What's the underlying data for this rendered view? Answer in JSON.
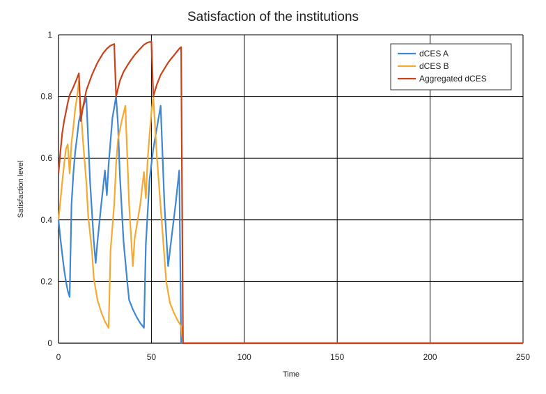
{
  "chart_data": {
    "type": "line",
    "title": "Satisfaction of the institutions",
    "xlabel": "Time",
    "ylabel": "Satisfaction level",
    "xlim": [
      0,
      250
    ],
    "ylim": [
      0,
      1
    ],
    "x_ticks": [
      "0",
      "50",
      "100",
      "150",
      "200",
      "250"
    ],
    "y_ticks": [
      "0",
      "0.2",
      "0.4",
      "0.6",
      "0.8",
      "1"
    ],
    "grid": true,
    "legend_position": "top-right",
    "series": [
      {
        "name": "dCES A",
        "color": "#3f86d3",
        "points": [
          [
            0,
            0.4
          ],
          [
            1,
            0.34
          ],
          [
            2,
            0.29
          ],
          [
            3,
            0.24
          ],
          [
            4,
            0.2
          ],
          [
            5,
            0.17
          ],
          [
            6,
            0.15
          ],
          [
            7,
            0.45
          ],
          [
            8,
            0.55
          ],
          [
            9,
            0.62
          ],
          [
            10,
            0.67
          ],
          [
            11,
            0.72
          ],
          [
            12,
            0.745
          ],
          [
            13,
            0.76
          ],
          [
            14,
            0.78
          ],
          [
            15,
            0.795
          ],
          [
            17,
            0.52
          ],
          [
            19,
            0.33
          ],
          [
            20,
            0.26
          ],
          [
            21,
            0.33
          ],
          [
            23,
            0.45
          ],
          [
            25,
            0.56
          ],
          [
            26,
            0.48
          ],
          [
            27,
            0.58
          ],
          [
            29,
            0.73
          ],
          [
            31,
            0.8
          ],
          [
            32,
            0.71
          ],
          [
            33,
            0.55
          ],
          [
            35,
            0.33
          ],
          [
            37,
            0.2
          ],
          [
            38,
            0.14
          ],
          [
            40,
            0.11
          ],
          [
            42,
            0.085
          ],
          [
            44,
            0.065
          ],
          [
            46,
            0.05
          ],
          [
            47,
            0.32
          ],
          [
            49,
            0.53
          ],
          [
            51,
            0.63
          ],
          [
            53,
            0.7
          ],
          [
            55,
            0.77
          ],
          [
            57,
            0.45
          ],
          [
            59,
            0.25
          ],
          [
            61,
            0.35
          ],
          [
            63,
            0.45
          ],
          [
            65,
            0.56
          ],
          [
            66,
            0.0
          ],
          [
            250,
            0.0
          ]
        ]
      },
      {
        "name": "dCES B",
        "color": "#f5a931",
        "points": [
          [
            0,
            0.4
          ],
          [
            1,
            0.46
          ],
          [
            2,
            0.52
          ],
          [
            3,
            0.58
          ],
          [
            4,
            0.63
          ],
          [
            5,
            0.645
          ],
          [
            6,
            0.55
          ],
          [
            7,
            0.65
          ],
          [
            8,
            0.7
          ],
          [
            9,
            0.76
          ],
          [
            10,
            0.8
          ],
          [
            11,
            0.85
          ],
          [
            13,
            0.67
          ],
          [
            15,
            0.52
          ],
          [
            16,
            0.41
          ],
          [
            18,
            0.3
          ],
          [
            19,
            0.21
          ],
          [
            21,
            0.14
          ],
          [
            23,
            0.1
          ],
          [
            25,
            0.07
          ],
          [
            27,
            0.05
          ],
          [
            28,
            0.3
          ],
          [
            30,
            0.45
          ],
          [
            31,
            0.58
          ],
          [
            32,
            0.66
          ],
          [
            34,
            0.72
          ],
          [
            36,
            0.77
          ],
          [
            38,
            0.45
          ],
          [
            40,
            0.25
          ],
          [
            41,
            0.34
          ],
          [
            44,
            0.45
          ],
          [
            46,
            0.555
          ],
          [
            47,
            0.47
          ],
          [
            48,
            0.6
          ],
          [
            50,
            0.75
          ],
          [
            51,
            0.8
          ],
          [
            52,
            0.7
          ],
          [
            53,
            0.6
          ],
          [
            56,
            0.36
          ],
          [
            58,
            0.2
          ],
          [
            60,
            0.13
          ],
          [
            62,
            0.1
          ],
          [
            64,
            0.075
          ],
          [
            66,
            0.055
          ],
          [
            67,
            0.0
          ],
          [
            250,
            0.0
          ]
        ]
      },
      {
        "name": "Aggregated dCES",
        "color": "#c9421a",
        "points": [
          [
            0,
            0.55
          ],
          [
            1,
            0.62
          ],
          [
            2,
            0.68
          ],
          [
            3,
            0.72
          ],
          [
            4,
            0.75
          ],
          [
            5,
            0.78
          ],
          [
            6,
            0.805
          ],
          [
            8,
            0.83
          ],
          [
            10,
            0.86
          ],
          [
            11,
            0.875
          ],
          [
            12,
            0.72
          ],
          [
            13,
            0.76
          ],
          [
            15,
            0.82
          ],
          [
            18,
            0.87
          ],
          [
            21,
            0.91
          ],
          [
            24,
            0.94
          ],
          [
            26,
            0.955
          ],
          [
            28,
            0.965
          ],
          [
            30,
            0.97
          ],
          [
            31,
            0.8
          ],
          [
            33,
            0.85
          ],
          [
            35,
            0.88
          ],
          [
            38,
            0.91
          ],
          [
            41,
            0.935
          ],
          [
            44,
            0.955
          ],
          [
            46,
            0.968
          ],
          [
            48,
            0.975
          ],
          [
            50,
            0.978
          ],
          [
            51,
            0.8
          ],
          [
            53,
            0.84
          ],
          [
            55,
            0.87
          ],
          [
            57,
            0.89
          ],
          [
            59,
            0.91
          ],
          [
            61,
            0.925
          ],
          [
            63,
            0.94
          ],
          [
            65,
            0.955
          ],
          [
            66,
            0.96
          ],
          [
            67,
            0.0
          ],
          [
            250,
            0.0
          ]
        ]
      }
    ]
  }
}
